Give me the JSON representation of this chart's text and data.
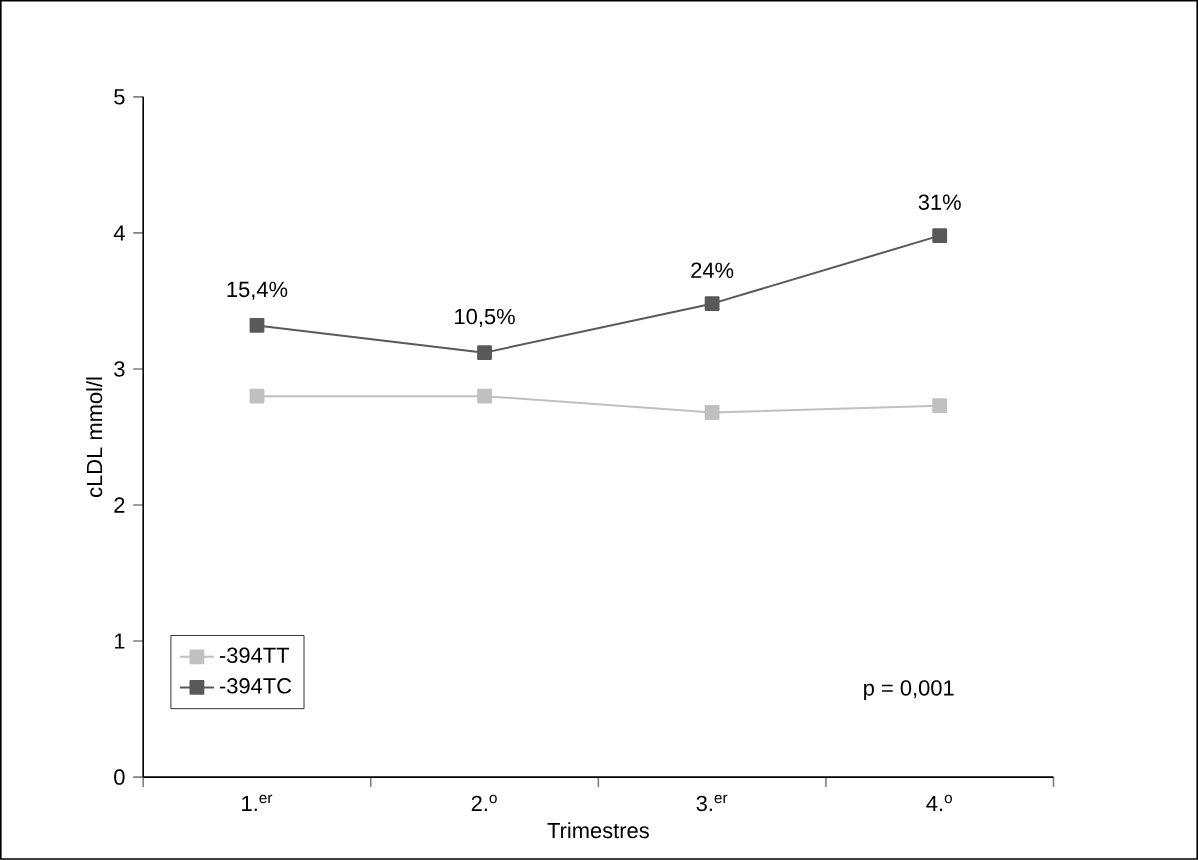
{
  "chart_data": {
    "type": "line",
    "xlabel": "Trimestres",
    "ylabel": "cLDL mmol/l",
    "categories": [
      "1.$^{er}$",
      "2.$^{o}$",
      "3.$^{er}$",
      "4.$^{o}$"
    ],
    "series": [
      {
        "name": "-394TT",
        "color": "#c0c0c0",
        "values": [
          2.8,
          2.8,
          2.68,
          2.73
        ]
      },
      {
        "name": "-394TC",
        "color": "#595959",
        "values": [
          3.32,
          3.12,
          3.48,
          3.98
        ]
      }
    ],
    "ylim": [
      0,
      5
    ],
    "yticks": [
      0,
      1,
      2,
      3,
      4,
      5
    ],
    "grid": false,
    "legend": "bottom left",
    "marker": "square",
    "line_style": "solid",
    "annotations": [
      {
        "text": "15,4%",
        "x": "1.$^{er}$",
        "y": 3.32
      },
      {
        "text": "10,5%",
        "x": "2.$^{o}$",
        "y": 3.12
      },
      {
        "text": "24%",
        "x": "3.$^{er}$",
        "y": 3.48
      },
      {
        "text": "31%",
        "x": "4.$^{o}$",
        "y": 3.98
      },
      "p = 0,001"
    ]
  }
}
